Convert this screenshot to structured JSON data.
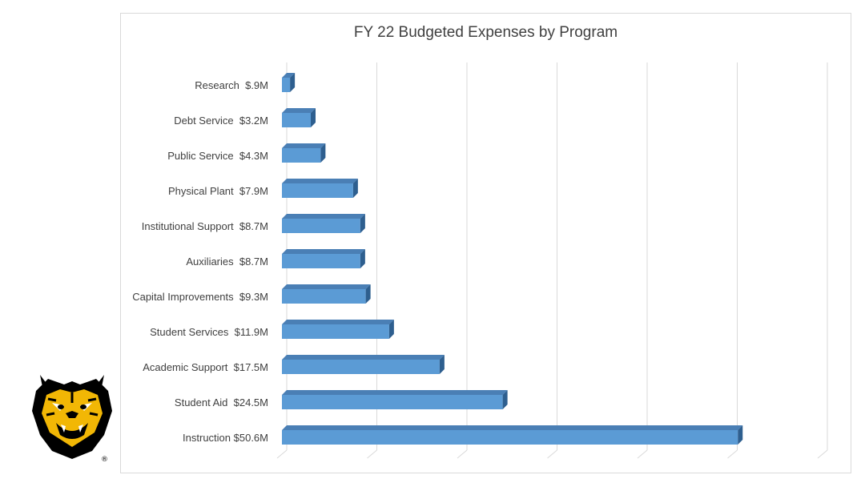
{
  "chart_data": {
    "type": "bar",
    "orientation": "horizontal",
    "style": "3d",
    "title": "FY 22 Budgeted Expenses by Program",
    "xlabel": "",
    "ylabel": "",
    "categories": [
      "Research  $.9M",
      "Debt Service  $3.2M",
      "Public Service  $4.3M",
      "Physical Plant  $7.9M",
      "Institutional Support  $8.7M",
      "Auxiliaries  $8.7M",
      "Capital Improvements  $9.3M",
      "Student Services  $11.9M",
      "Academic Support  $17.5M",
      "Student Aid  $24.5M",
      "Instruction $50.6M"
    ],
    "values": [
      0.9,
      3.2,
      4.3,
      7.9,
      8.7,
      8.7,
      9.3,
      11.9,
      17.5,
      24.5,
      50.6
    ],
    "xlim": [
      0,
      60
    ],
    "grid": true,
    "legend": "none",
    "colors": {
      "bar_front": "#5b9bd5",
      "bar_top": "#4a7fb5",
      "bar_side": "#2e5f8f",
      "grid": "#d9d9d9",
      "label": "#404040"
    }
  },
  "logo": {
    "name": "tiger-mascot-logo"
  }
}
